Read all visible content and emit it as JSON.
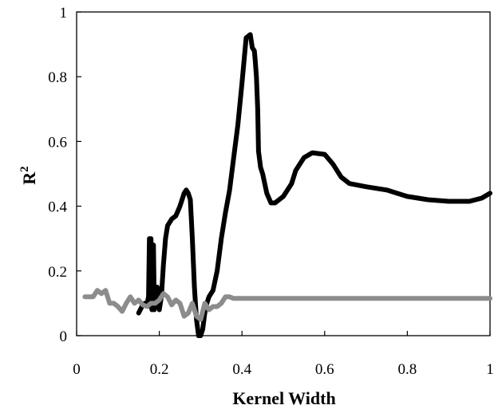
{
  "chart_data": {
    "type": "line",
    "title": "",
    "xlabel": "Kernel Width",
    "ylabel_base": "R",
    "ylabel_sup": "2",
    "xlim": [
      0,
      1
    ],
    "ylim": [
      0,
      1
    ],
    "xticks": [
      "0",
      "0.2",
      "0.4",
      "0.6",
      "0.8",
      "1"
    ],
    "yticks": [
      "0",
      "0.2",
      "0.4",
      "0.6",
      "0.8",
      "1"
    ],
    "grid": false,
    "legend": "none",
    "series": [
      {
        "color": "#000000",
        "x": [
          0.15,
          0.158,
          0.165,
          0.17,
          0.174,
          0.176,
          0.178,
          0.18,
          0.182,
          0.184,
          0.186,
          0.188,
          0.19,
          0.195,
          0.2,
          0.205,
          0.21,
          0.215,
          0.22,
          0.225,
          0.23,
          0.24,
          0.25,
          0.26,
          0.265,
          0.27,
          0.275,
          0.28,
          0.285,
          0.29,
          0.295,
          0.3,
          0.305,
          0.31,
          0.315,
          0.32,
          0.33,
          0.34,
          0.35,
          0.36,
          0.37,
          0.38,
          0.39,
          0.4,
          0.41,
          0.42,
          0.425,
          0.43,
          0.432,
          0.435,
          0.438,
          0.44,
          0.445,
          0.45,
          0.455,
          0.46,
          0.47,
          0.48,
          0.5,
          0.52,
          0.53,
          0.55,
          0.57,
          0.6,
          0.62,
          0.64,
          0.66,
          0.68,
          0.7,
          0.75,
          0.8,
          0.85,
          0.9,
          0.95,
          0.98,
          1.0
        ],
        "values": [
          0.07,
          0.09,
          0.1,
          0.095,
          0.12,
          0.3,
          0.09,
          0.3,
          0.08,
          0.1,
          0.28,
          0.08,
          0.14,
          0.15,
          0.08,
          0.12,
          0.22,
          0.3,
          0.34,
          0.35,
          0.36,
          0.37,
          0.4,
          0.44,
          0.45,
          0.44,
          0.42,
          0.3,
          0.15,
          0.05,
          0.0,
          0.0,
          0.02,
          0.07,
          0.1,
          0.12,
          0.14,
          0.2,
          0.3,
          0.38,
          0.45,
          0.55,
          0.65,
          0.78,
          0.92,
          0.93,
          0.89,
          0.88,
          0.85,
          0.8,
          0.7,
          0.57,
          0.52,
          0.5,
          0.47,
          0.44,
          0.41,
          0.41,
          0.43,
          0.47,
          0.51,
          0.55,
          0.565,
          0.56,
          0.53,
          0.49,
          0.47,
          0.465,
          0.46,
          0.45,
          0.43,
          0.42,
          0.415,
          0.415,
          0.425,
          0.44
        ]
      },
      {
        "color": "#8c8c8c",
        "x": [
          0.02,
          0.04,
          0.05,
          0.06,
          0.07,
          0.08,
          0.09,
          0.1,
          0.11,
          0.12,
          0.13,
          0.14,
          0.15,
          0.16,
          0.17,
          0.18,
          0.19,
          0.2,
          0.21,
          0.22,
          0.23,
          0.24,
          0.25,
          0.26,
          0.27,
          0.28,
          0.29,
          0.3,
          0.31,
          0.32,
          0.33,
          0.34,
          0.35,
          0.36,
          0.37,
          0.38,
          0.4,
          0.5,
          0.6,
          0.7,
          0.8,
          0.9,
          1.0
        ],
        "values": [
          0.12,
          0.12,
          0.14,
          0.13,
          0.14,
          0.1,
          0.1,
          0.09,
          0.075,
          0.1,
          0.12,
          0.1,
          0.11,
          0.095,
          0.09,
          0.1,
          0.1,
          0.11,
          0.13,
          0.12,
          0.095,
          0.11,
          0.1,
          0.06,
          0.07,
          0.1,
          0.06,
          0.05,
          0.1,
          0.08,
          0.09,
          0.09,
          0.1,
          0.12,
          0.12,
          0.115,
          0.115,
          0.115,
          0.115,
          0.115,
          0.115,
          0.115,
          0.115
        ]
      }
    ]
  }
}
